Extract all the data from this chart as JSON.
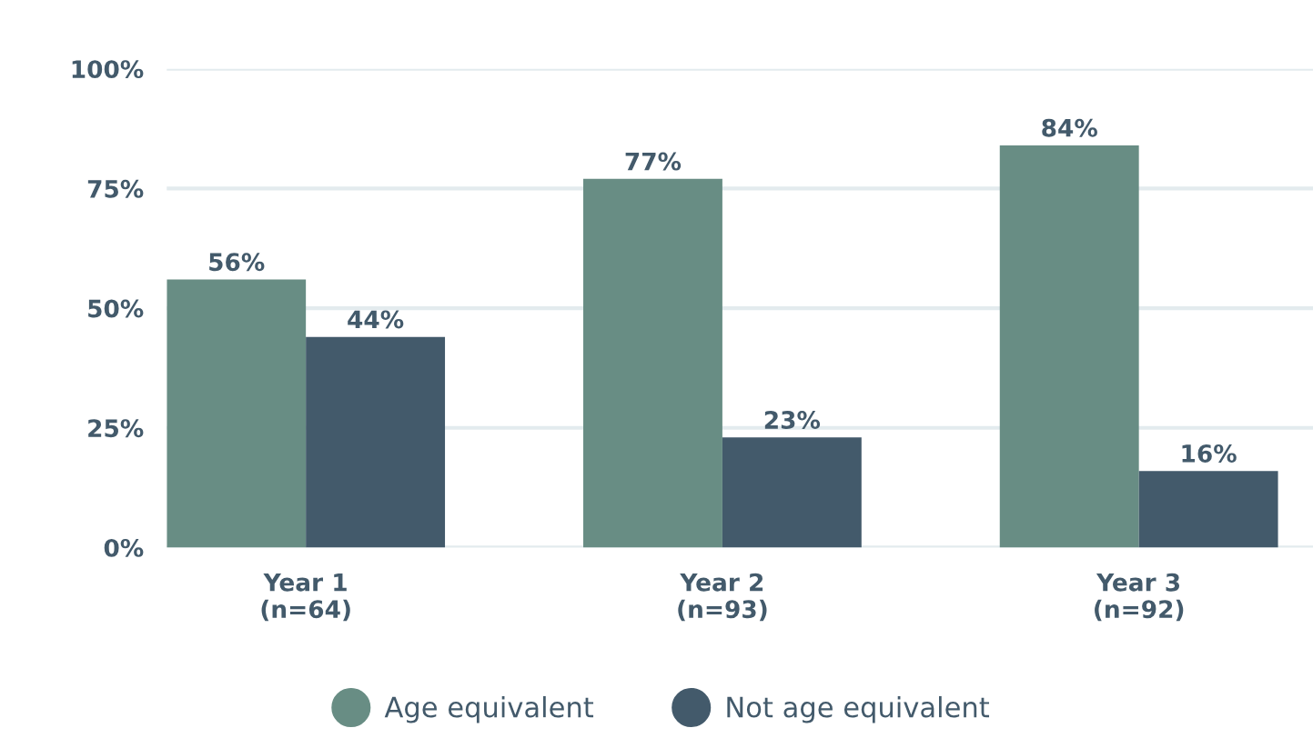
{
  "chart_data": {
    "type": "bar",
    "categories": [
      "Year 1\n(n=64)",
      "Year 2\n(n=93)",
      "Year 3\n(n=92)"
    ],
    "series": [
      {
        "name": "Age equivalent",
        "color": "#688d84",
        "values": [
          56,
          77,
          84
        ]
      },
      {
        "name": "Not age equivalent",
        "color": "#435a6b",
        "values": [
          44,
          23,
          16
        ]
      }
    ],
    "ylim": [
      0,
      100
    ],
    "yticks": [
      {
        "value": 0,
        "label": "0%"
      },
      {
        "value": 25,
        "label": "25%"
      },
      {
        "value": 50,
        "label": "50%"
      },
      {
        "value": 75,
        "label": "75%"
      },
      {
        "value": 100,
        "label": "100%"
      }
    ],
    "value_labels": [
      [
        "56%",
        "77%",
        "84%"
      ],
      [
        "44%",
        "23%",
        "16%"
      ]
    ],
    "grid": "y",
    "legend": "bottom",
    "marker": "circle"
  }
}
